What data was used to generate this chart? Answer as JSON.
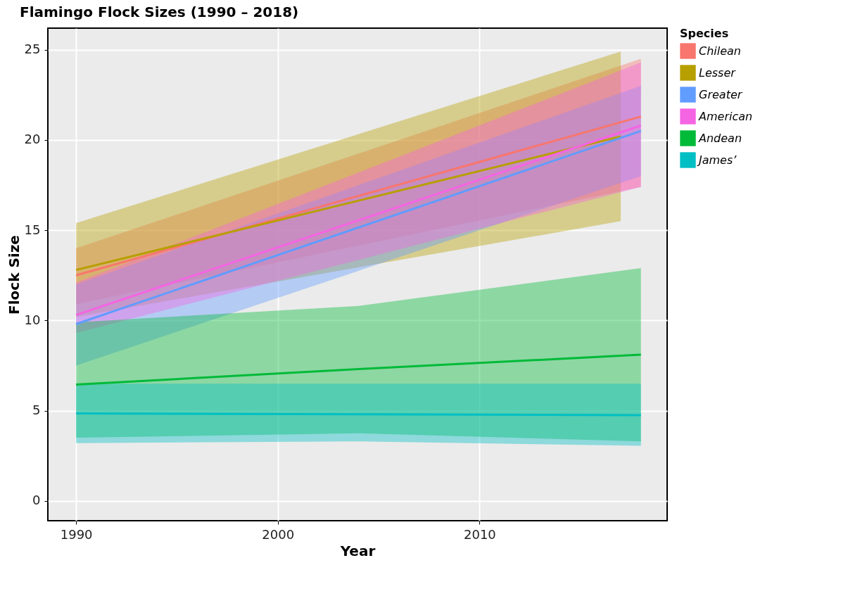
{
  "chart_data": {
    "type": "line",
    "title": "Flamingo Flock Sizes (1990 – 2018)",
    "xlabel": "Year",
    "ylabel": "Flock Size",
    "legend_title": "Species",
    "xlim": [
      1988.6,
      2019.3
    ],
    "xticks": [
      1990,
      2000,
      2010
    ],
    "ylim": [
      -1.1,
      26.2
    ],
    "yticks": [
      0,
      5,
      10,
      15,
      20,
      25
    ],
    "grid": true,
    "legend": "right",
    "marker": "none",
    "line_style": "solid",
    "series": [
      {
        "name": "Chilean",
        "color": "#f8766d",
        "x": [
          1990,
          2018
        ],
        "values": [
          12.5,
          21.3
        ],
        "lower": [
          10.9,
          17.4
        ],
        "upper": [
          14.0,
          24.5
        ]
      },
      {
        "name": "Lesser",
        "color": "#b79f00",
        "x": [
          1990,
          2017
        ],
        "values": [
          12.8,
          20.2
        ],
        "lower": [
          10.2,
          15.5
        ],
        "upper": [
          15.4,
          24.9
        ]
      },
      {
        "name": "Greater",
        "color": "#619cff",
        "x": [
          1990,
          2018
        ],
        "values": [
          9.8,
          20.5
        ],
        "lower": [
          7.5,
          18.0
        ],
        "upper": [
          12.0,
          23.0
        ]
      },
      {
        "name": "American",
        "color": "#f564e3",
        "x": [
          1990,
          2018
        ],
        "values": [
          10.3,
          20.8
        ],
        "lower": [
          9.3,
          17.4
        ],
        "upper": [
          12.1,
          24.3
        ]
      },
      {
        "name": "Andean",
        "color": "#00ba38",
        "x": [
          1990,
          2004,
          2018
        ],
        "values": [
          6.45,
          7.3,
          8.1
        ],
        "lower": [
          3.5,
          3.75,
          3.3
        ],
        "upper": [
          9.9,
          10.8,
          12.9
        ]
      },
      {
        "name": "James’",
        "color": "#00bfc4",
        "x": [
          1990,
          2004,
          2018
        ],
        "values": [
          4.85,
          4.8,
          4.75
        ],
        "lower": [
          3.2,
          3.3,
          3.05
        ],
        "upper": [
          6.5,
          6.5,
          6.5
        ]
      }
    ]
  }
}
